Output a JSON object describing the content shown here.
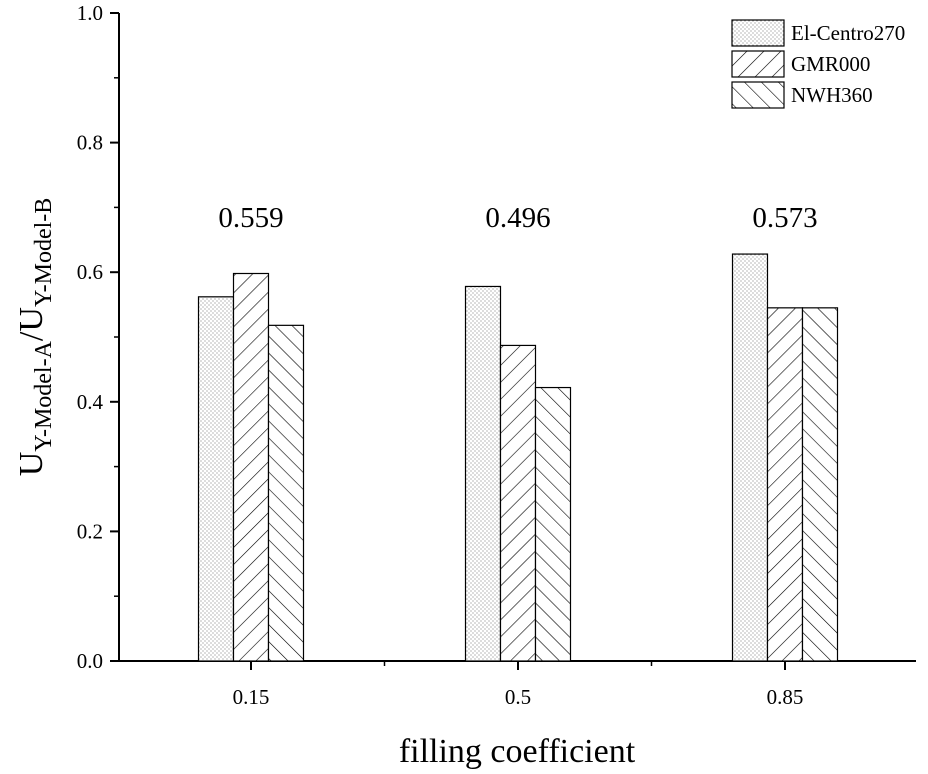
{
  "chart_data": {
    "type": "bar",
    "title": "",
    "xlabel": "filling coefficient",
    "ylabel": {
      "base1": "U",
      "sub1": "Y-Model-A",
      "sep": "/",
      "base2": "U",
      "sub2": "Y-Model-B"
    },
    "ylim": [
      0,
      1.0
    ],
    "yticks": [
      "0.0",
      "0.2",
      "0.4",
      "0.6",
      "0.8",
      "1.0"
    ],
    "categories": [
      "0.15",
      "0.5",
      "0.85"
    ],
    "series": [
      {
        "name": "El-Centro270",
        "pattern": "dots",
        "values": [
          0.562,
          0.578,
          0.628
        ]
      },
      {
        "name": "GMR000",
        "pattern": "forward-hatch",
        "values": [
          0.598,
          0.487,
          0.545
        ]
      },
      {
        "name": "NWH360",
        "pattern": "back-hatch",
        "values": [
          0.518,
          0.422,
          0.545
        ]
      }
    ],
    "annotations": [
      {
        "category": "0.15",
        "text": "0.559"
      },
      {
        "category": "0.5",
        "text": "0.496"
      },
      {
        "category": "0.85",
        "text": "0.573"
      }
    ],
    "annotation_y": 0.67,
    "legend_position": "top-right",
    "grid": false,
    "colors": {
      "bar_fill": "#ffffff",
      "stroke": "#000000",
      "background": "#ffffff"
    }
  }
}
